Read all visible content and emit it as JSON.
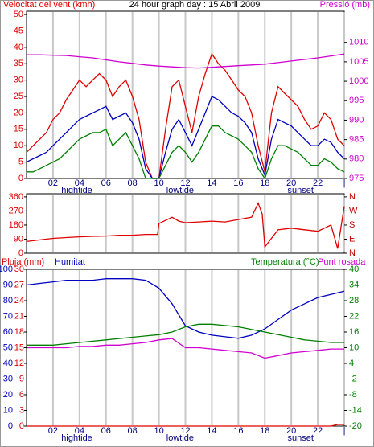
{
  "chart_data": [
    {
      "type": "line",
      "title": "24 hour graph day : 15 Abril 2009",
      "y_label": "Velocitat del vent (kmh)",
      "y2_label": "Pressió (mb)",
      "ycolor": "#e00000",
      "y2color": "#d000d0",
      "xlim": [
        0,
        24
      ],
      "xticks": [
        {
          "value": 2,
          "label": "02"
        },
        {
          "value": 4,
          "label": "04"
        },
        {
          "value": 6,
          "label": "06"
        },
        {
          "value": 8,
          "label": "08"
        },
        {
          "value": 10,
          "label": "10"
        },
        {
          "value": 12,
          "label": "12"
        },
        {
          "value": 14,
          "label": "14"
        },
        {
          "value": 16,
          "label": "16"
        },
        {
          "value": 18,
          "label": "18"
        },
        {
          "value": 20,
          "label": "20"
        },
        {
          "value": 22,
          "label": "22"
        },
        {
          "value": 24,
          "label": "|"
        }
      ],
      "annotations": [
        {
          "label": "hightide",
          "x": 3.8
        },
        {
          "label": "lowtide",
          "x": 11.6
        },
        {
          "label": "sunset",
          "x": 20.7
        }
      ],
      "ylim": [
        0,
        51
      ],
      "yticks": [
        0,
        5,
        10,
        15,
        20,
        25,
        30,
        35,
        40,
        45,
        50
      ],
      "y2lim": [
        975,
        1018
      ],
      "y2ticks": [
        975,
        980,
        985,
        990,
        995,
        1000,
        1005,
        1010
      ],
      "grid": true,
      "series": [
        {
          "color": "#e00000",
          "x": [
            0,
            0.5,
            1,
            1.5,
            2,
            2.5,
            3,
            3.5,
            4,
            4.5,
            5,
            5.5,
            6,
            6.5,
            7,
            7.5,
            8,
            8.5,
            9,
            9.5,
            10,
            10.5,
            11,
            11.5,
            12,
            12.5,
            13,
            13.5,
            14,
            14.5,
            15,
            15.5,
            16,
            16.5,
            17,
            17.5,
            18,
            18.5,
            19,
            19.5,
            20,
            20.5,
            21,
            21.5,
            22,
            22.5,
            23,
            23.5,
            24
          ],
          "values": [
            8,
            10,
            12,
            14,
            18,
            20,
            24,
            27,
            30,
            28,
            30,
            32,
            30,
            25,
            28,
            30,
            25,
            18,
            5,
            0,
            0,
            15,
            28,
            30,
            22,
            14,
            25,
            32,
            38,
            35,
            33,
            30,
            27,
            25,
            20,
            10,
            2,
            20,
            28,
            26,
            24,
            22,
            18,
            15,
            16,
            20,
            18,
            12,
            10
          ]
        },
        {
          "color": "#0000c0",
          "x": [
            0,
            0.5,
            1,
            1.5,
            2,
            2.5,
            3,
            3.5,
            4,
            4.5,
            5,
            5.5,
            6,
            6.5,
            7,
            7.5,
            8,
            8.5,
            9,
            9.5,
            10,
            10.5,
            11,
            11.5,
            12,
            12.5,
            13,
            13.5,
            14,
            14.5,
            15,
            15.5,
            16,
            16.5,
            17,
            17.5,
            18,
            18.5,
            19,
            19.5,
            20,
            20.5,
            21,
            21.5,
            22,
            22.5,
            23,
            23.5,
            24
          ],
          "values": [
            5,
            6,
            7,
            8,
            10,
            12,
            14,
            16,
            18,
            19,
            20,
            21,
            22,
            18,
            19,
            20,
            17,
            12,
            3,
            0,
            0,
            8,
            15,
            18,
            14,
            10,
            15,
            20,
            25,
            24,
            22,
            20,
            19,
            17,
            14,
            6,
            1,
            12,
            18,
            17,
            16,
            14,
            12,
            10,
            10,
            12,
            11,
            8,
            6
          ]
        },
        {
          "color": "#008000",
          "x": [
            0,
            0.5,
            1,
            1.5,
            2,
            2.5,
            3,
            3.5,
            4,
            4.5,
            5,
            5.5,
            6,
            6.5,
            7,
            7.5,
            8,
            8.5,
            9,
            9.5,
            10,
            10.5,
            11,
            11.5,
            12,
            12.5,
            13,
            13.5,
            14,
            14.5,
            15,
            15.5,
            16,
            16.5,
            17,
            17.5,
            18,
            18.5,
            19,
            19.5,
            20,
            20.5,
            21,
            21.5,
            22,
            22.5,
            23,
            23.5,
            24
          ],
          "values": [
            2,
            2,
            3,
            4,
            5,
            6,
            8,
            10,
            12,
            13,
            14,
            14,
            15,
            10,
            12,
            14,
            10,
            6,
            0,
            0,
            0,
            4,
            8,
            10,
            8,
            5,
            8,
            12,
            16,
            16,
            14,
            13,
            12,
            10,
            8,
            3,
            0,
            6,
            10,
            10,
            9,
            8,
            6,
            4,
            4,
            6,
            5,
            3,
            2
          ]
        },
        {
          "color": "#d000d0",
          "axis": "y2",
          "x": [
            0,
            1,
            2,
            3,
            4,
            5,
            6,
            7,
            8,
            9,
            10,
            11,
            12,
            13,
            14,
            15,
            16,
            17,
            18,
            19,
            20,
            21,
            22,
            23,
            24
          ],
          "values": [
            1006.8,
            1006.8,
            1006.7,
            1006.6,
            1006.3,
            1006,
            1005.5,
            1005,
            1004.6,
            1004.2,
            1003.9,
            1003.7,
            1003.5,
            1003.4,
            1003.6,
            1003.8,
            1004,
            1004.2,
            1004.4,
            1004.8,
            1005.2,
            1005.6,
            1006,
            1006.5,
            1007
          ]
        }
      ]
    },
    {
      "type": "line",
      "ycolor": "#e00000",
      "y2color": "#c00000",
      "xlim": [
        0,
        24
      ],
      "xticks": [
        {
          "value": 2,
          "label": "02"
        },
        {
          "value": 4,
          "label": "04"
        },
        {
          "value": 6,
          "label": "06"
        },
        {
          "value": 8,
          "label": "08"
        },
        {
          "value": 10,
          "label": "10"
        },
        {
          "value": 12,
          "label": "12"
        },
        {
          "value": 14,
          "label": "14"
        },
        {
          "value": 16,
          "label": "16"
        },
        {
          "value": 18,
          "label": "18"
        },
        {
          "value": 20,
          "label": "20"
        },
        {
          "value": 22,
          "label": "22"
        },
        {
          "value": 24,
          "label": "|"
        }
      ],
      "ylim": [
        0,
        380
      ],
      "yticks": [
        0,
        90,
        180,
        270,
        360
      ],
      "y2lim": [
        0,
        380
      ],
      "y2ticks": [
        {
          "value": 0,
          "label": "N"
        },
        {
          "value": 90,
          "label": "E"
        },
        {
          "value": 180,
          "label": "S"
        },
        {
          "value": 270,
          "label": "W"
        },
        {
          "value": 360,
          "label": "N"
        }
      ],
      "grid": true,
      "series": [
        {
          "color": "#e00000",
          "x": [
            0,
            1,
            2,
            3,
            4,
            5,
            6,
            7,
            8,
            9,
            9.9,
            10,
            11,
            11.5,
            12,
            13,
            14,
            15,
            16,
            17,
            17.5,
            17.8,
            18,
            19,
            20,
            21,
            22,
            23,
            23.5,
            24
          ],
          "values": [
            75,
            85,
            95,
            100,
            105,
            108,
            110,
            115,
            115,
            120,
            120,
            190,
            230,
            205,
            195,
            200,
            205,
            200,
            215,
            230,
            320,
            250,
            40,
            150,
            160,
            150,
            140,
            180,
            30,
            300
          ]
        }
      ]
    },
    {
      "type": "line",
      "ycolor": "#0000c0",
      "y3color": "#e00000",
      "y2color": "#008000",
      "xlim": [
        0,
        24
      ],
      "xticks": [
        {
          "value": 2,
          "label": "02"
        },
        {
          "value": 4,
          "label": "04"
        },
        {
          "value": 6,
          "label": "06"
        },
        {
          "value": 8,
          "label": "08"
        },
        {
          "value": 10,
          "label": "10"
        },
        {
          "value": 12,
          "label": "12"
        },
        {
          "value": 14,
          "label": "14"
        },
        {
          "value": 16,
          "label": "16"
        },
        {
          "value": 18,
          "label": "18"
        },
        {
          "value": 20,
          "label": "20"
        },
        {
          "value": 22,
          "label": "22"
        },
        {
          "value": 24,
          "label": "|"
        }
      ],
      "annotations": [
        {
          "label": "hightide",
          "x": 3.8
        },
        {
          "label": "lowtide",
          "x": 11.6
        },
        {
          "label": "sunset",
          "x": 20.7
        }
      ],
      "ylim": [
        0,
        100
      ],
      "yticks": [
        0,
        10,
        20,
        30,
        40,
        50,
        60,
        70,
        80,
        90,
        100
      ],
      "y3lim": [
        0,
        30
      ],
      "y3ticks": [
        0,
        3,
        6,
        9,
        12,
        15,
        18,
        21,
        24,
        27,
        30
      ],
      "y2lim": [
        -20,
        40
      ],
      "y2ticks": [
        -20,
        -14,
        -8,
        -2,
        4,
        10,
        16,
        22,
        28,
        34,
        40
      ],
      "grid": true,
      "series": [
        {
          "name": "Pluja (mm)",
          "color": "#e00000",
          "axis": "y3",
          "x": [
            0,
            2,
            4,
            6,
            8,
            10,
            12,
            14,
            16,
            18,
            20,
            22,
            23,
            23.5,
            24
          ],
          "values": [
            0,
            0,
            0,
            0,
            0,
            0,
            0,
            0,
            0,
            0,
            0,
            0,
            0,
            0.3,
            0.3
          ]
        },
        {
          "name": "Humitat",
          "color": "#0000c0",
          "x": [
            0,
            1,
            2,
            3,
            4,
            5,
            6,
            7,
            8,
            9,
            10,
            11,
            12,
            13,
            14,
            15,
            16,
            17,
            18,
            19,
            20,
            21,
            22,
            23,
            24
          ],
          "values": [
            90,
            91,
            92,
            93,
            93,
            93,
            94,
            94,
            94,
            93,
            88,
            78,
            64,
            60,
            58,
            57,
            56,
            58,
            62,
            68,
            74,
            78,
            82,
            84,
            86
          ]
        },
        {
          "name": "Temperatura (°C)",
          "color": "#008000",
          "axis": "y2",
          "x": [
            0,
            1,
            2,
            3,
            4,
            5,
            6,
            7,
            8,
            9,
            10,
            11,
            12,
            13,
            14,
            15,
            16,
            17,
            18,
            19,
            20,
            21,
            22,
            23,
            24
          ],
          "values": [
            11,
            11,
            11,
            11.5,
            12,
            12.5,
            13,
            13.5,
            14,
            14.5,
            15,
            16,
            18,
            19,
            19,
            18.5,
            18,
            17,
            16,
            15,
            14,
            13,
            12.5,
            12,
            12
          ]
        },
        {
          "name": "Punt rosada",
          "color": "#d000d0",
          "axis": "y2",
          "x": [
            0,
            1,
            2,
            3,
            4,
            5,
            6,
            7,
            8,
            9,
            10,
            11,
            12,
            13,
            14,
            15,
            16,
            17,
            18,
            19,
            20,
            21,
            22,
            23,
            24
          ],
          "values": [
            10,
            10,
            10,
            10,
            10.5,
            10.5,
            11,
            11,
            11.5,
            12,
            13,
            13.5,
            10,
            10,
            9.5,
            9,
            8.5,
            8,
            6,
            7,
            8,
            8.5,
            9,
            9.5,
            9.5
          ]
        }
      ]
    }
  ]
}
